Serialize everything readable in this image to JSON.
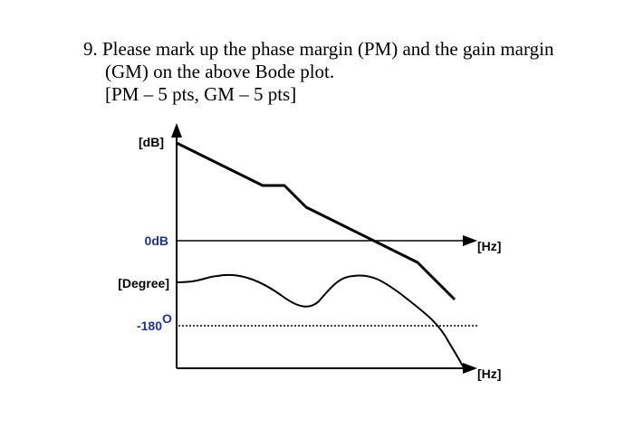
{
  "question": {
    "number": "9.",
    "line1": "Please mark up the phase margin (PM) and the gain margin",
    "line2": "(GM) on the above Bode plot.",
    "line3": "[PM – 5 pts, GM – 5 pts]"
  },
  "bode": {
    "magnitude_unit": "[dB]",
    "zero_db_label": "0dB",
    "x_unit_top": "[Hz]",
    "phase_unit": "[Degree]",
    "minus180_number": "-180",
    "minus180_degree": "O",
    "x_unit_bottom": "[Hz]",
    "colors": {
      "curve": "#000000",
      "label_blue": "#1f2f9e",
      "label_black": "#000000"
    }
  }
}
